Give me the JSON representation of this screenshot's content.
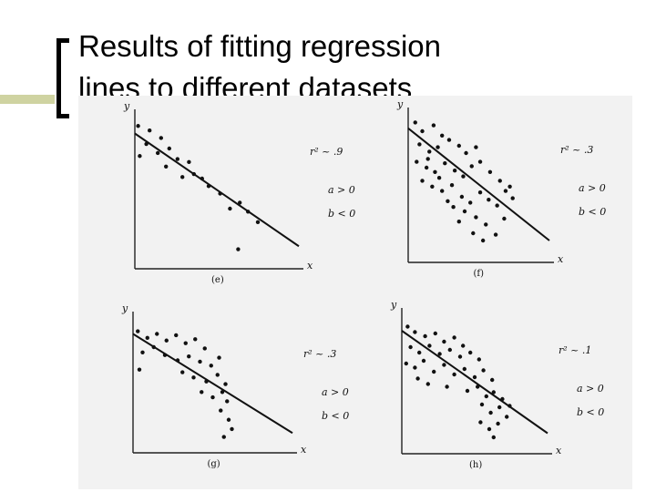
{
  "slide": {
    "title_line1": "Results of fitting regression",
    "title_line2": "lines to different datasets",
    "accent_color": "#cfd3a1"
  },
  "panels": [
    {
      "id": "e",
      "label": "(e)",
      "y_axis": "y",
      "x_axis": "x",
      "r2": "r² ~ .9",
      "a": "a > 0",
      "b": "b < 0",
      "line": {
        "y0": 9.0,
        "y1": 1.5
      },
      "points": [
        [
          0.2,
          9.5
        ],
        [
          0.9,
          9.2
        ],
        [
          0.7,
          8.3
        ],
        [
          1.6,
          8.7
        ],
        [
          1.4,
          7.7
        ],
        [
          2.1,
          8.0
        ],
        [
          2.6,
          7.3
        ],
        [
          1.9,
          6.8
        ],
        [
          3.3,
          7.1
        ],
        [
          3.6,
          6.3
        ],
        [
          2.9,
          6.1
        ],
        [
          4.1,
          6.0
        ],
        [
          4.5,
          5.5
        ],
        [
          5.2,
          5.0
        ],
        [
          6.4,
          4.4
        ],
        [
          5.8,
          4.0
        ],
        [
          6.9,
          3.8
        ],
        [
          7.5,
          3.1
        ],
        [
          6.3,
          1.3
        ],
        [
          0.3,
          7.5
        ]
      ]
    },
    {
      "id": "f",
      "label": "(f)",
      "y_axis": "y",
      "x_axis": "x",
      "r2": "r² ~ .3",
      "a": "a > 0",
      "b": "b < 0",
      "line": {
        "y0": 9.2,
        "y1": 1.5
      },
      "points": [
        [
          0.5,
          9.6
        ],
        [
          1.0,
          9.0
        ],
        [
          1.8,
          9.4
        ],
        [
          2.4,
          8.7
        ],
        [
          0.8,
          8.1
        ],
        [
          1.5,
          7.6
        ],
        [
          2.1,
          7.9
        ],
        [
          2.9,
          8.4
        ],
        [
          3.6,
          8.0
        ],
        [
          4.1,
          7.5
        ],
        [
          4.8,
          7.9
        ],
        [
          0.6,
          6.9
        ],
        [
          1.3,
          6.5
        ],
        [
          1.9,
          6.2
        ],
        [
          2.6,
          6.8
        ],
        [
          3.3,
          6.3
        ],
        [
          3.9,
          5.9
        ],
        [
          4.5,
          6.6
        ],
        [
          5.1,
          6.9
        ],
        [
          5.8,
          6.2
        ],
        [
          6.5,
          5.6
        ],
        [
          7.2,
          5.2
        ],
        [
          1.0,
          5.6
        ],
        [
          1.7,
          5.2
        ],
        [
          2.4,
          4.9
        ],
        [
          3.1,
          5.3
        ],
        [
          3.8,
          4.5
        ],
        [
          4.4,
          4.1
        ],
        [
          5.1,
          4.8
        ],
        [
          5.7,
          4.3
        ],
        [
          6.3,
          3.9
        ],
        [
          6.9,
          4.9
        ],
        [
          4.0,
          3.5
        ],
        [
          4.8,
          3.1
        ],
        [
          5.5,
          2.6
        ],
        [
          6.2,
          1.9
        ],
        [
          4.6,
          2.0
        ],
        [
          5.3,
          1.5
        ],
        [
          3.2,
          3.8
        ],
        [
          2.8,
          4.2
        ],
        [
          3.6,
          2.8
        ],
        [
          6.8,
          3.0
        ],
        [
          1.4,
          7.1
        ],
        [
          2.2,
          5.8
        ],
        [
          7.4,
          4.4
        ]
      ]
    },
    {
      "id": "g",
      "label": "(g)",
      "y_axis": "y",
      "x_axis": "x",
      "r2": "r² ~ .3",
      "a": "a > 0",
      "b": "b < 0",
      "line": {
        "y0": 9.0,
        "y1": 1.5
      },
      "points": [
        [
          0.3,
          9.2
        ],
        [
          0.9,
          8.7
        ],
        [
          1.5,
          9.0
        ],
        [
          2.1,
          8.5
        ],
        [
          2.7,
          8.9
        ],
        [
          3.3,
          8.3
        ],
        [
          3.9,
          8.6
        ],
        [
          4.5,
          7.9
        ],
        [
          0.6,
          7.6
        ],
        [
          1.3,
          8.0
        ],
        [
          2.0,
          7.4
        ],
        [
          2.8,
          7.0
        ],
        [
          3.5,
          7.3
        ],
        [
          4.2,
          6.9
        ],
        [
          4.9,
          6.6
        ],
        [
          5.4,
          7.2
        ],
        [
          3.1,
          6.1
        ],
        [
          3.8,
          5.7
        ],
        [
          4.6,
          5.4
        ],
        [
          5.3,
          5.9
        ],
        [
          5.8,
          5.2
        ],
        [
          4.3,
          4.6
        ],
        [
          5.0,
          4.2
        ],
        [
          5.6,
          4.6
        ],
        [
          5.9,
          3.9
        ],
        [
          5.5,
          3.2
        ],
        [
          6.0,
          2.5
        ],
        [
          6.2,
          1.8
        ],
        [
          5.7,
          1.2
        ],
        [
          0.4,
          6.3
        ]
      ]
    },
    {
      "id": "h",
      "label": "(h)",
      "y_axis": "y",
      "x_axis": "x",
      "r2": "r² ~ .1",
      "a": "a > 0",
      "b": "b < 0",
      "line": {
        "y0": 9.0,
        "y1": 1.5
      },
      "points": [
        [
          0.4,
          9.3
        ],
        [
          0.9,
          8.9
        ],
        [
          1.6,
          8.6
        ],
        [
          2.3,
          8.8
        ],
        [
          2.9,
          8.2
        ],
        [
          3.6,
          8.5
        ],
        [
          4.2,
          7.9
        ],
        [
          0.6,
          7.8
        ],
        [
          1.2,
          7.4
        ],
        [
          1.9,
          7.9
        ],
        [
          2.6,
          7.3
        ],
        [
          3.3,
          7.6
        ],
        [
          4.0,
          7.1
        ],
        [
          4.7,
          7.4
        ],
        [
          5.3,
          6.9
        ],
        [
          0.3,
          6.6
        ],
        [
          0.9,
          6.3
        ],
        [
          1.5,
          6.8
        ],
        [
          2.2,
          6.0
        ],
        [
          2.9,
          6.5
        ],
        [
          3.6,
          5.8
        ],
        [
          4.3,
          6.2
        ],
        [
          5.0,
          5.6
        ],
        [
          5.6,
          6.1
        ],
        [
          6.2,
          5.4
        ],
        [
          1.1,
          5.5
        ],
        [
          1.8,
          5.1
        ],
        [
          3.1,
          4.9
        ],
        [
          4.5,
          4.6
        ],
        [
          5.2,
          4.9
        ],
        [
          6.3,
          4.5
        ],
        [
          6.9,
          4.0
        ],
        [
          7.4,
          3.5
        ],
        [
          5.5,
          3.6
        ],
        [
          6.1,
          3.0
        ],
        [
          5.4,
          2.3
        ],
        [
          6.0,
          1.8
        ],
        [
          6.6,
          2.2
        ],
        [
          6.3,
          1.2
        ],
        [
          7.2,
          2.7
        ],
        [
          5.8,
          4.2
        ],
        [
          6.7,
          3.4
        ]
      ]
    }
  ]
}
